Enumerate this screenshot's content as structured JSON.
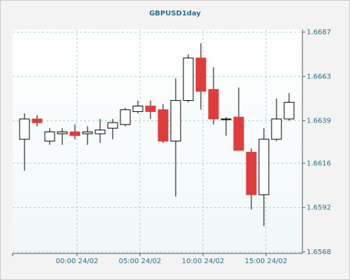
{
  "chart_data": {
    "type": "candlestick",
    "title": "GBPUSD1day",
    "categories": [
      null,
      null,
      null,
      null,
      "00:00 24/02",
      null,
      null,
      null,
      null,
      "05:00 24/02",
      null,
      null,
      null,
      null,
      "10:00 24/02",
      null,
      null,
      null,
      null,
      "15:00 24/02",
      null,
      null
    ],
    "series": [
      {
        "open": [
          1.6629,
          1.664,
          1.6628,
          1.6632,
          1.6633,
          1.6632,
          1.6632,
          1.6635,
          1.6637,
          1.6644,
          1.6647,
          1.6645,
          1.6628,
          1.665,
          1.6673,
          1.6656,
          1.664,
          1.6641,
          1.6622,
          1.6599,
          1.6629,
          1.664
        ],
        "high": [
          1.6643,
          1.6642,
          1.6635,
          1.6635,
          1.6637,
          1.6636,
          1.664,
          1.664,
          1.6646,
          1.665,
          1.665,
          1.6648,
          1.6662,
          1.6675,
          1.6681,
          1.6668,
          1.6641,
          1.6657,
          1.6624,
          1.6635,
          1.6651,
          1.6654
        ],
        "low": [
          1.6612,
          1.6636,
          1.6626,
          1.6626,
          1.6629,
          1.6626,
          1.6627,
          1.6629,
          1.6636,
          1.6643,
          1.664,
          1.6627,
          1.6598,
          1.6649,
          1.6645,
          1.6637,
          1.6631,
          1.6623,
          1.6591,
          1.6582,
          1.6628,
          1.6639
        ],
        "close": [
          1.664,
          1.6638,
          1.6633,
          1.6633,
          1.6631,
          1.6633,
          1.6634,
          1.6638,
          1.6645,
          1.6647,
          1.6644,
          1.6628,
          1.665,
          1.6673,
          1.6655,
          1.664,
          1.664,
          1.6623,
          1.6599,
          1.6629,
          1.664,
          1.6649
        ],
        "up_color": "#ffffff",
        "down_color": "#e03c3c",
        "edge_color": "#000000"
      }
    ],
    "ylim": [
      1.65672,
      1.66885
    ],
    "yticks": [
      1.6568,
      1.6592,
      1.6616,
      1.6639,
      1.6663,
      1.6687
    ],
    "grid": true
  }
}
